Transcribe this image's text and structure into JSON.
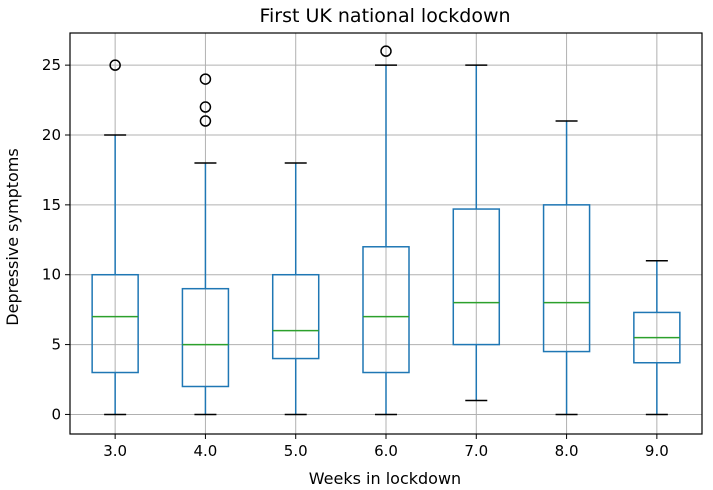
{
  "chart_data": {
    "type": "boxplot",
    "title": "First UK national lockdown",
    "xlabel": "Weeks in lockdown",
    "ylabel": "Depressive symptoms",
    "ylim": [
      -1.4,
      27.3
    ],
    "yticks": [
      0,
      5,
      10,
      15,
      20,
      25
    ],
    "grid": true,
    "colors": {
      "box": "#1f77b4",
      "median": "#2ca02c",
      "whisker_cap": "#000000",
      "outlier": "#000000"
    },
    "categories": [
      "3.0",
      "4.0",
      "5.0",
      "6.0",
      "7.0",
      "8.0",
      "9.0"
    ],
    "boxes": [
      {
        "label": "3.0",
        "whislo": 0,
        "q1": 3,
        "med": 7,
        "q3": 10,
        "whishi": 20,
        "fliers": [
          25
        ]
      },
      {
        "label": "4.0",
        "whislo": 0,
        "q1": 2,
        "med": 5,
        "q3": 9,
        "whishi": 18,
        "fliers": [
          21,
          22,
          24
        ]
      },
      {
        "label": "5.0",
        "whislo": 0,
        "q1": 4,
        "med": 6,
        "q3": 10,
        "whishi": 18,
        "fliers": []
      },
      {
        "label": "6.0",
        "whislo": 0,
        "q1": 3,
        "med": 7,
        "q3": 12,
        "whishi": 25,
        "fliers": [
          26
        ]
      },
      {
        "label": "7.0",
        "whislo": 1,
        "q1": 5,
        "med": 8,
        "q3": 14.7,
        "whishi": 25,
        "fliers": []
      },
      {
        "label": "8.0",
        "whislo": 0,
        "q1": 4.5,
        "med": 8,
        "q3": 15,
        "whishi": 21,
        "fliers": []
      },
      {
        "label": "9.0",
        "whislo": 0,
        "q1": 3.7,
        "med": 5.5,
        "q3": 7.3,
        "whishi": 11,
        "fliers": []
      }
    ]
  }
}
